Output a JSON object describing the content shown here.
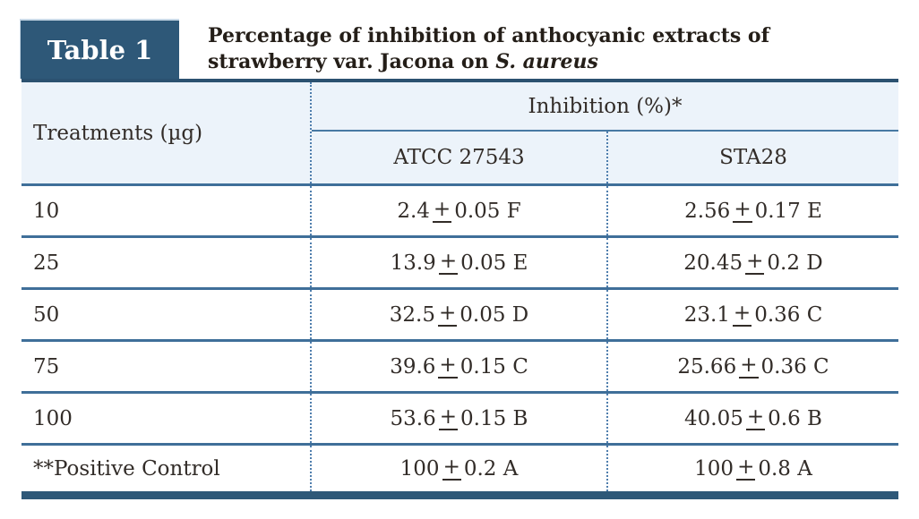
{
  "label": "Table 1",
  "title": {
    "line1": "Percentage of inhibition of anthocyanic extracts of",
    "line2_regular": "strawberry var. Jacona on ",
    "line2_italic": "S. aureus"
  },
  "colors": {
    "navy": "#2e5878",
    "separator_line": "#3f6f99",
    "dotted_divider": "#4f7ead",
    "header_background": "#ecf3fa",
    "text": "#322c28"
  },
  "table": {
    "treatments_header": "Treatments (µg)",
    "inhibition_header": "Inhibition (%)*",
    "strain_headers": [
      "ATCC 27543",
      "STA28"
    ],
    "pm": "+",
    "rows": [
      {
        "treatment": "10",
        "atcc_value": "2.4",
        "atcc_sd": "0.05 F",
        "sta28_value": "2.56",
        "sta28_sd": "0.17 E"
      },
      {
        "treatment": "25",
        "atcc_value": "13.9",
        "atcc_sd": "0.05 E",
        "sta28_value": "20.45",
        "sta28_sd": "0.2 D"
      },
      {
        "treatment": "50",
        "atcc_value": "32.5",
        "atcc_sd": "0.05 D",
        "sta28_value": "23.1",
        "sta28_sd": "0.36 C"
      },
      {
        "treatment": "75",
        "atcc_value": "39.6",
        "atcc_sd": "0.15 C",
        "sta28_value": "25.66",
        "sta28_sd": "0.36 C"
      },
      {
        "treatment": "100",
        "atcc_value": "53.6",
        "atcc_sd": "0.15 B",
        "sta28_value": "40.05",
        "sta28_sd": "0.6 B"
      },
      {
        "treatment": "**Positive Control",
        "atcc_value": "100",
        "atcc_sd": "0.2 A",
        "sta28_value": "100",
        "sta28_sd": "0.8 A"
      }
    ]
  }
}
